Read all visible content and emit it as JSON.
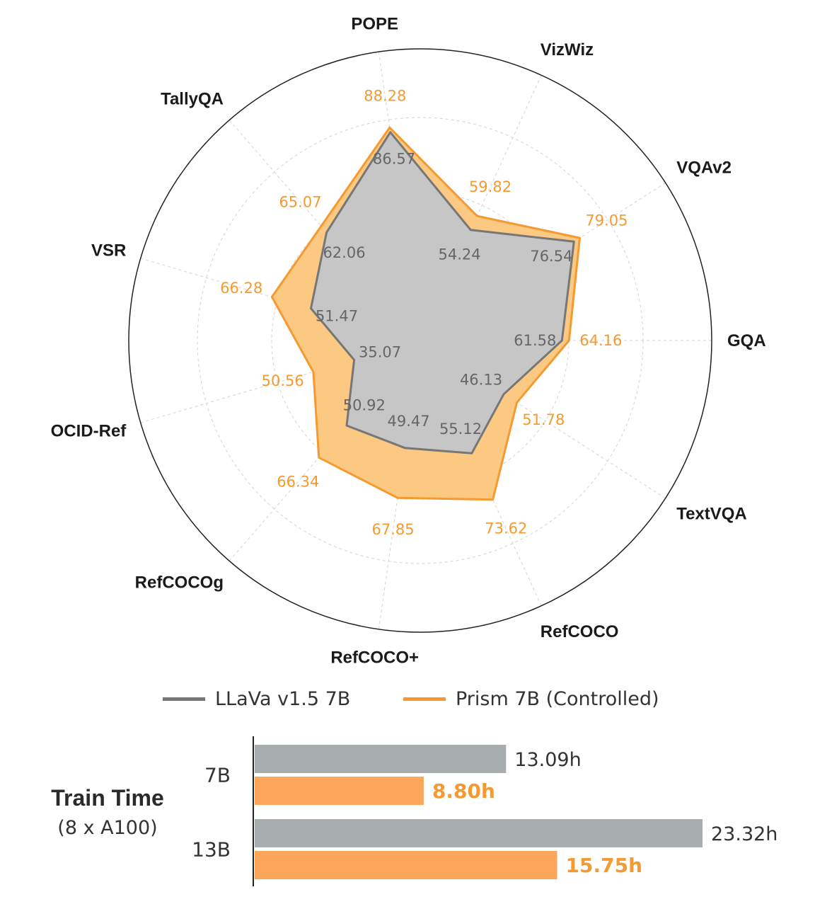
{
  "chart_data": [
    {
      "type": "radar",
      "axes": [
        "GQA",
        "VQAv2",
        "VizWiz",
        "POPE",
        "TallyQA",
        "VSR",
        "OCID-Ref",
        "RefCOCOg",
        "RefCOCO+",
        "RefCOCO",
        "TextVQA"
      ],
      "series": [
        {
          "name": "LLaVa v1.5 7B",
          "color": "#777777",
          "fill": "#c6c6c6",
          "values": [
            61.58,
            76.54,
            54.24,
            86.57,
            62.06,
            51.47,
            35.07,
            50.92,
            49.47,
            55.12,
            46.13
          ]
        },
        {
          "name": "Prism 7B (Controlled)",
          "color": "#f59a30",
          "fill": "#fcc983",
          "values": [
            64.16,
            79.05,
            59.82,
            88.28,
            65.07,
            66.28,
            50.56,
            66.34,
            67.85,
            73.62,
            51.78
          ]
        }
      ],
      "legend": "bottom",
      "grid": true
    },
    {
      "type": "bar",
      "orientation": "horizontal",
      "title": "Train Time",
      "subtitle": "(8 x A100)",
      "categories": [
        "7B",
        "13B"
      ],
      "series": [
        {
          "name": "LLaVa v1.5 7B",
          "color": "#a8aeb0",
          "values": [
            13.09,
            23.32
          ],
          "labels": [
            "13.09h",
            "23.32h"
          ]
        },
        {
          "name": "Prism 7B (Controlled)",
          "color": "#fba65a",
          "values": [
            8.8,
            15.75
          ],
          "labels": [
            "8.80h",
            "15.75h"
          ]
        }
      ],
      "xlim": [
        0,
        23.32
      ]
    }
  ]
}
